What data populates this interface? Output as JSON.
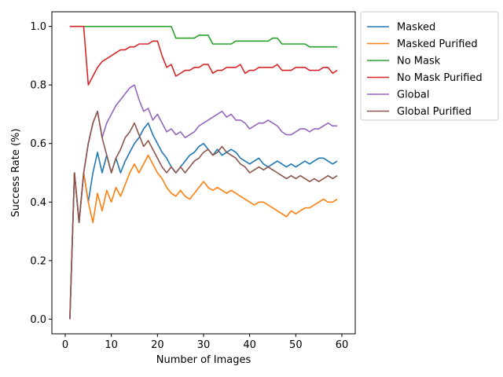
{
  "chart_data": {
    "type": "line",
    "title": "",
    "xlabel": "Number of Images",
    "ylabel": "Success Rate (%)",
    "xlim": [
      -2.9,
      62.9
    ],
    "ylim": [
      -0.05,
      1.05
    ],
    "xticks": [
      0,
      10,
      20,
      30,
      40,
      50,
      60
    ],
    "yticks": [
      0.0,
      0.2,
      0.4,
      0.6,
      0.8,
      1.0
    ],
    "xtick_labels": [
      "0",
      "10",
      "20",
      "30",
      "40",
      "50",
      "60"
    ],
    "ytick_labels": [
      "0.0",
      "0.2",
      "0.4",
      "0.6",
      "0.8",
      "1.0"
    ],
    "grid": false,
    "legend_position": "outside-top-right",
    "series": [
      {
        "name": "Masked",
        "color": "#1f77b4",
        "x": [
          1,
          2,
          3,
          4,
          5,
          6,
          7,
          8,
          9,
          10,
          11,
          12,
          13,
          14,
          15,
          16,
          17,
          18,
          19,
          20,
          21,
          22,
          23,
          24,
          25,
          26,
          27,
          28,
          29,
          30,
          31,
          32,
          33,
          34,
          35,
          36,
          37,
          38,
          39,
          40,
          41,
          42,
          43,
          44,
          45,
          46,
          47,
          48,
          49,
          50,
          51,
          52,
          53,
          54,
          55,
          56,
          57,
          58,
          59
        ],
        "y": [
          0.0,
          0.5,
          0.33,
          0.5,
          0.4,
          0.5,
          0.57,
          0.5,
          0.56,
          0.5,
          0.55,
          0.5,
          0.54,
          0.57,
          0.6,
          0.62,
          0.65,
          0.67,
          0.63,
          0.6,
          0.57,
          0.55,
          0.52,
          0.5,
          0.52,
          0.54,
          0.56,
          0.57,
          0.59,
          0.6,
          0.58,
          0.56,
          0.58,
          0.56,
          0.57,
          0.58,
          0.57,
          0.55,
          0.54,
          0.53,
          0.54,
          0.55,
          0.53,
          0.52,
          0.53,
          0.54,
          0.53,
          0.52,
          0.53,
          0.52,
          0.53,
          0.54,
          0.53,
          0.54,
          0.55,
          0.55,
          0.54,
          0.53,
          0.54
        ]
      },
      {
        "name": "Masked Purified",
        "color": "#ff7f0e",
        "x": [
          1,
          2,
          3,
          4,
          5,
          6,
          7,
          8,
          9,
          10,
          11,
          12,
          13,
          14,
          15,
          16,
          17,
          18,
          19,
          20,
          21,
          22,
          23,
          24,
          25,
          26,
          27,
          28,
          29,
          30,
          31,
          32,
          33,
          34,
          35,
          36,
          37,
          38,
          39,
          40,
          41,
          42,
          43,
          44,
          45,
          46,
          47,
          48,
          49,
          50,
          51,
          52,
          53,
          54,
          55,
          56,
          57,
          58,
          59
        ],
        "y": [
          0.0,
          0.5,
          0.33,
          0.5,
          0.4,
          0.33,
          0.43,
          0.37,
          0.44,
          0.4,
          0.45,
          0.42,
          0.46,
          0.5,
          0.53,
          0.5,
          0.53,
          0.56,
          0.53,
          0.5,
          0.48,
          0.45,
          0.43,
          0.42,
          0.44,
          0.42,
          0.41,
          0.43,
          0.45,
          0.47,
          0.45,
          0.44,
          0.45,
          0.44,
          0.43,
          0.44,
          0.43,
          0.42,
          0.41,
          0.4,
          0.39,
          0.4,
          0.4,
          0.39,
          0.38,
          0.37,
          0.36,
          0.35,
          0.37,
          0.36,
          0.37,
          0.38,
          0.38,
          0.39,
          0.4,
          0.41,
          0.4,
          0.4,
          0.41
        ]
      },
      {
        "name": "No Mask",
        "color": "#2ca02c",
        "x": [
          1,
          2,
          3,
          4,
          5,
          6,
          7,
          8,
          9,
          10,
          11,
          12,
          13,
          14,
          15,
          16,
          17,
          18,
          19,
          20,
          21,
          22,
          23,
          24,
          25,
          26,
          27,
          28,
          29,
          30,
          31,
          32,
          33,
          34,
          35,
          36,
          37,
          38,
          39,
          40,
          41,
          42,
          43,
          44,
          45,
          46,
          47,
          48,
          49,
          50,
          51,
          52,
          53,
          54,
          55,
          56,
          57,
          58,
          59
        ],
        "y": [
          1.0,
          1.0,
          1.0,
          1.0,
          1.0,
          1.0,
          1.0,
          1.0,
          1.0,
          1.0,
          1.0,
          1.0,
          1.0,
          1.0,
          1.0,
          1.0,
          1.0,
          1.0,
          1.0,
          1.0,
          1.0,
          1.0,
          1.0,
          0.96,
          0.96,
          0.96,
          0.96,
          0.96,
          0.97,
          0.97,
          0.97,
          0.94,
          0.94,
          0.94,
          0.94,
          0.94,
          0.95,
          0.95,
          0.95,
          0.95,
          0.95,
          0.95,
          0.95,
          0.95,
          0.96,
          0.96,
          0.94,
          0.94,
          0.94,
          0.94,
          0.94,
          0.94,
          0.93,
          0.93,
          0.93,
          0.93,
          0.93,
          0.93,
          0.93
        ]
      },
      {
        "name": "No Mask Purified",
        "color": "#d62728",
        "x": [
          1,
          2,
          3,
          4,
          5,
          6,
          7,
          8,
          9,
          10,
          11,
          12,
          13,
          14,
          15,
          16,
          17,
          18,
          19,
          20,
          21,
          22,
          23,
          24,
          25,
          26,
          27,
          28,
          29,
          30,
          31,
          32,
          33,
          34,
          35,
          36,
          37,
          38,
          39,
          40,
          41,
          42,
          43,
          44,
          45,
          46,
          47,
          48,
          49,
          50,
          51,
          52,
          53,
          54,
          55,
          56,
          57,
          58,
          59
        ],
        "y": [
          1.0,
          1.0,
          1.0,
          1.0,
          0.8,
          0.83,
          0.86,
          0.88,
          0.89,
          0.9,
          0.91,
          0.92,
          0.92,
          0.93,
          0.93,
          0.94,
          0.94,
          0.94,
          0.95,
          0.95,
          0.9,
          0.86,
          0.87,
          0.83,
          0.84,
          0.85,
          0.85,
          0.86,
          0.86,
          0.87,
          0.87,
          0.84,
          0.85,
          0.85,
          0.86,
          0.86,
          0.86,
          0.87,
          0.84,
          0.85,
          0.85,
          0.86,
          0.86,
          0.86,
          0.86,
          0.87,
          0.85,
          0.85,
          0.85,
          0.86,
          0.86,
          0.86,
          0.85,
          0.85,
          0.85,
          0.86,
          0.86,
          0.84,
          0.85
        ]
      },
      {
        "name": "Global",
        "color": "#9467bd",
        "x": [
          1,
          2,
          3,
          4,
          5,
          6,
          7,
          8,
          9,
          10,
          11,
          12,
          13,
          14,
          15,
          16,
          17,
          18,
          19,
          20,
          21,
          22,
          23,
          24,
          25,
          26,
          27,
          28,
          29,
          30,
          31,
          32,
          33,
          34,
          35,
          36,
          37,
          38,
          39,
          40,
          41,
          42,
          43,
          44,
          45,
          46,
          47,
          48,
          49,
          50,
          51,
          52,
          53,
          54,
          55,
          56,
          57,
          58,
          59
        ],
        "y": [
          0.0,
          0.5,
          0.33,
          0.5,
          0.6,
          0.67,
          0.71,
          0.62,
          0.67,
          0.7,
          0.73,
          0.75,
          0.77,
          0.79,
          0.8,
          0.75,
          0.71,
          0.72,
          0.68,
          0.7,
          0.67,
          0.64,
          0.65,
          0.63,
          0.64,
          0.62,
          0.63,
          0.64,
          0.66,
          0.67,
          0.68,
          0.69,
          0.7,
          0.71,
          0.69,
          0.7,
          0.68,
          0.68,
          0.67,
          0.65,
          0.66,
          0.67,
          0.67,
          0.68,
          0.67,
          0.66,
          0.64,
          0.63,
          0.63,
          0.64,
          0.65,
          0.65,
          0.64,
          0.65,
          0.65,
          0.66,
          0.67,
          0.66,
          0.66
        ]
      },
      {
        "name": "Global Purified",
        "color": "#8c564b",
        "x": [
          1,
          2,
          3,
          4,
          5,
          6,
          7,
          8,
          9,
          10,
          11,
          12,
          13,
          14,
          15,
          16,
          17,
          18,
          19,
          20,
          21,
          22,
          23,
          24,
          25,
          26,
          27,
          28,
          29,
          30,
          31,
          32,
          33,
          34,
          35,
          36,
          37,
          38,
          39,
          40,
          41,
          42,
          43,
          44,
          45,
          46,
          47,
          48,
          49,
          50,
          51,
          52,
          53,
          54,
          55,
          56,
          57,
          58,
          59
        ],
        "y": [
          0.0,
          0.5,
          0.33,
          0.5,
          0.6,
          0.67,
          0.71,
          0.62,
          0.56,
          0.5,
          0.55,
          0.58,
          0.62,
          0.64,
          0.67,
          0.63,
          0.59,
          0.61,
          0.58,
          0.55,
          0.52,
          0.5,
          0.52,
          0.5,
          0.52,
          0.5,
          0.52,
          0.54,
          0.55,
          0.57,
          0.58,
          0.56,
          0.57,
          0.59,
          0.57,
          0.56,
          0.55,
          0.53,
          0.52,
          0.5,
          0.51,
          0.52,
          0.51,
          0.52,
          0.51,
          0.5,
          0.49,
          0.48,
          0.49,
          0.48,
          0.49,
          0.48,
          0.47,
          0.48,
          0.47,
          0.48,
          0.49,
          0.48,
          0.49
        ]
      }
    ]
  }
}
